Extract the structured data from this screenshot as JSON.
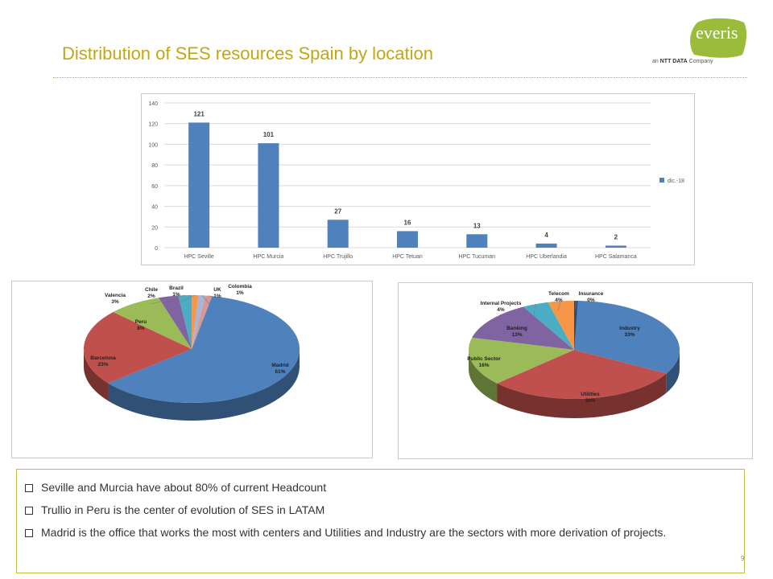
{
  "header": {
    "title": "Distribution of SES resources Spain by location"
  },
  "logo": {
    "word": "everis",
    "tag_prefix": "an ",
    "tag_brand": "NTT DATA",
    "tag_suffix": " Company"
  },
  "colors": {
    "title": "#c2a614",
    "bar": "#4f81bd"
  },
  "chart_data": [
    {
      "type": "bar",
      "categories": [
        "HPC Seville",
        "HPC Murcia",
        "HPC Trujillo",
        "HPC Tetuan",
        "HPC Tucuman",
        "HPC Uberlandia",
        "HPC Salamanca"
      ],
      "series": [
        {
          "name": "dic.-18",
          "values": [
            121,
            101,
            27,
            16,
            13,
            4,
            2
          ]
        }
      ],
      "ylim": [
        0,
        140
      ],
      "yticks": [
        0,
        20,
        40,
        60,
        80,
        100,
        120,
        140
      ],
      "grid": true,
      "legend": "right"
    },
    {
      "type": "pie",
      "labels": [
        "Madrid",
        "Barcelona",
        "Peru",
        "Valencia",
        "Chile",
        "Brazil",
        "UK",
        "Colombia"
      ],
      "values": [
        61,
        23,
        8,
        3,
        2,
        1,
        1,
        1
      ],
      "value_labels": [
        "61%",
        "23%",
        "8%",
        "3%",
        "2%",
        "1%",
        "1%",
        "1%"
      ],
      "colors": [
        "#4f81bd",
        "#c0504d",
        "#9bbb59",
        "#8064a2",
        "#4bacc6",
        "#f79646",
        "#a5b6d8",
        "#d99794"
      ]
    },
    {
      "type": "pie",
      "labels": [
        "Industry",
        "Utilities",
        "Public Sector",
        "Banking",
        "Internal Projects",
        "Telecom",
        "Insurance"
      ],
      "values": [
        33,
        30,
        16,
        13,
        4,
        4,
        0
      ],
      "value_labels": [
        "33%",
        "30%",
        "16%",
        "13%",
        "4%",
        "4%",
        "0%"
      ],
      "colors": [
        "#4f81bd",
        "#c0504d",
        "#9bbb59",
        "#8064a2",
        "#4bacc6",
        "#f79646",
        "#2c4d75"
      ]
    }
  ],
  "notes": [
    "Seville and Murcia have about 80% of current Headcount",
    "Trullio in Peru is the center of evolution of SES in LATAM",
    "Madrid is the office  that works the most with centers and Utilities and Industry are the sectors with more derivation of projects."
  ],
  "page_number": "9"
}
